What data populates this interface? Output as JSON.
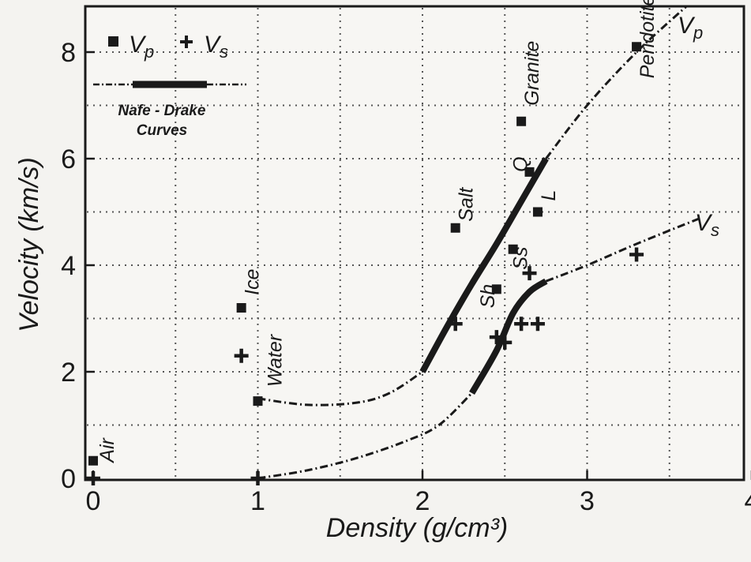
{
  "chart_data": {
    "type": "scatter",
    "xlabel": "Density (g/cm³)",
    "ylabel": "Velocity (km/s)",
    "xlim": [
      0,
      4
    ],
    "ylim": [
      0,
      9
    ],
    "x_ticks": [
      0,
      1,
      2,
      3,
      4
    ],
    "y_ticks": [
      0,
      2,
      4,
      6,
      8
    ],
    "grid": true,
    "legend": {
      "placement": "top-left",
      "vp_label": "Vp",
      "vs_label": "Vs",
      "curve_label_line1": "Nafe - Drake",
      "curve_label_line2": "Curves"
    },
    "series": [
      {
        "name": "Vp",
        "marker": "square",
        "points": [
          {
            "x": 0.0,
            "y": 0.33,
            "label": "Air"
          },
          {
            "x": 1.0,
            "y": 1.45,
            "label": "Water"
          },
          {
            "x": 0.9,
            "y": 3.2,
            "label": "Ice"
          },
          {
            "x": 2.2,
            "y": 4.7,
            "label": "Salt"
          },
          {
            "x": 2.45,
            "y": 3.55,
            "label": "Sh"
          },
          {
            "x": 2.55,
            "y": 4.3,
            "label": "Ss"
          },
          {
            "x": 2.6,
            "y": 6.7,
            "label": "Granite"
          },
          {
            "x": 2.65,
            "y": 5.75,
            "label": "Q"
          },
          {
            "x": 2.7,
            "y": 5.0,
            "label": "L"
          },
          {
            "x": 3.3,
            "y": 8.1,
            "label": "Peridotite"
          }
        ]
      },
      {
        "name": "Vs",
        "marker": "cross",
        "points": [
          {
            "x": 0.0,
            "y": 0.0
          },
          {
            "x": 1.0,
            "y": 0.0
          },
          {
            "x": 0.9,
            "y": 2.3
          },
          {
            "x": 2.2,
            "y": 2.9
          },
          {
            "x": 2.45,
            "y": 2.65
          },
          {
            "x": 2.5,
            "y": 2.55
          },
          {
            "x": 2.6,
            "y": 2.9
          },
          {
            "x": 2.65,
            "y": 3.85
          },
          {
            "x": 2.7,
            "y": 2.9
          },
          {
            "x": 3.3,
            "y": 4.2
          }
        ]
      }
    ],
    "curves": [
      {
        "name": "Vp",
        "label": "Vp",
        "dashed": [
          [
            1.0,
            1.5
          ],
          [
            1.3,
            1.38
          ],
          [
            1.6,
            1.42
          ],
          [
            1.8,
            1.6
          ],
          [
            2.0,
            2.0
          ]
        ],
        "solid": [
          [
            2.0,
            2.0
          ],
          [
            2.15,
            2.85
          ],
          [
            2.3,
            3.65
          ],
          [
            2.45,
            4.4
          ],
          [
            2.6,
            5.2
          ],
          [
            2.75,
            6.0
          ]
        ],
        "dashed_upper": [
          [
            2.75,
            6.0
          ],
          [
            3.0,
            7.0
          ],
          [
            3.3,
            8.0
          ],
          [
            3.6,
            8.85
          ]
        ]
      },
      {
        "name": "Vs",
        "label": "Vs",
        "dashed": [
          [
            1.0,
            0.0
          ],
          [
            1.3,
            0.15
          ],
          [
            1.6,
            0.38
          ],
          [
            1.9,
            0.7
          ],
          [
            2.1,
            1.0
          ],
          [
            2.3,
            1.6
          ]
        ],
        "solid": [
          [
            2.3,
            1.6
          ],
          [
            2.45,
            2.4
          ],
          [
            2.55,
            3.1
          ],
          [
            2.65,
            3.5
          ],
          [
            2.75,
            3.7
          ]
        ],
        "dashed_upper": [
          [
            2.75,
            3.7
          ],
          [
            3.0,
            4.0
          ],
          [
            3.3,
            4.4
          ],
          [
            3.7,
            4.9
          ]
        ]
      }
    ]
  },
  "colors": {
    "background": "#f4f3f0",
    "ink": "#1a1a1a",
    "grid": "#555555"
  }
}
